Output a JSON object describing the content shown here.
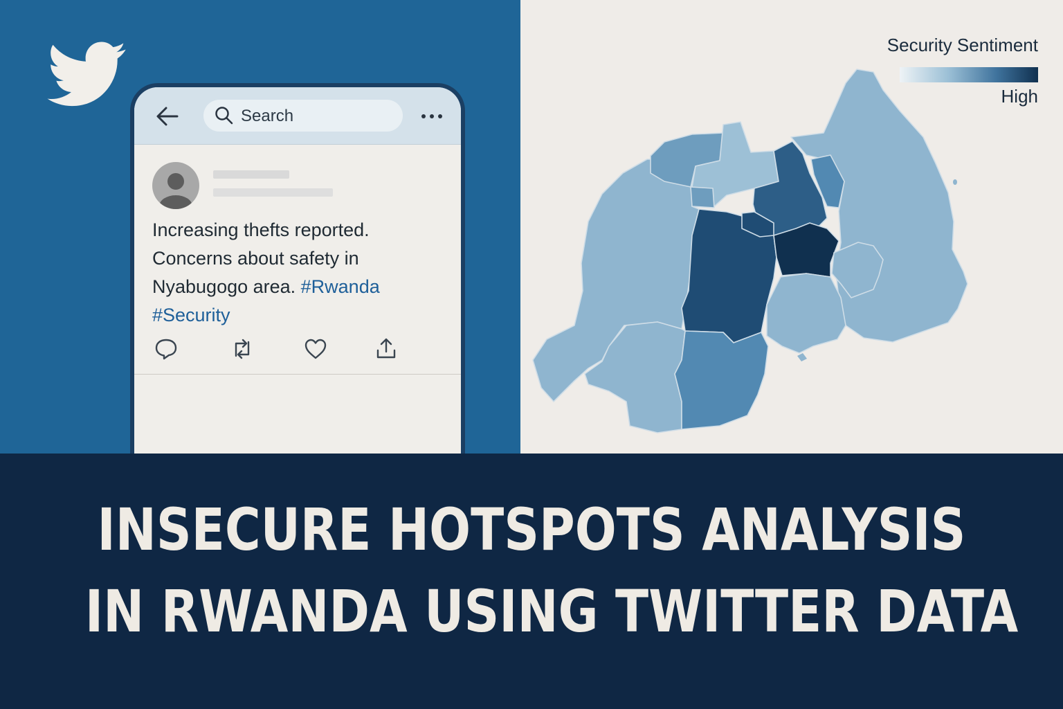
{
  "tweet": {
    "search_placeholder": "Search",
    "text_plain": "Increasing thefts reported. Concerns about safety in Nyabugogo area. ",
    "hashtags": [
      "#Rwanda",
      "#Security"
    ]
  },
  "map": {
    "legend_title": "Security Sentiment",
    "legend_high_label": "High",
    "colors": {
      "lightest": "#8fb5cf",
      "light": "#9dc0d6",
      "medium_light": "#6e9dbe",
      "medium": "#5289b2",
      "dark": "#2d5e87",
      "darker": "#1f4c74",
      "darkest": "#10304f"
    }
  },
  "title": {
    "line1": "INSECURE HOTSPOTS ANALYSIS",
    "line2": "IN RWANDA USING TWITTER DATA"
  },
  "icons": [
    "twitter-bird-icon",
    "back-arrow-icon",
    "search-icon",
    "more-icon",
    "avatar-icon",
    "reply-icon",
    "retweet-icon",
    "like-icon",
    "share-icon"
  ],
  "colors": {
    "left_bg": "#1f6597",
    "right_bg": "#efece8",
    "banner_bg": "#0f2744",
    "banner_text": "#efebe4",
    "hashtag": "#1e5f99"
  }
}
